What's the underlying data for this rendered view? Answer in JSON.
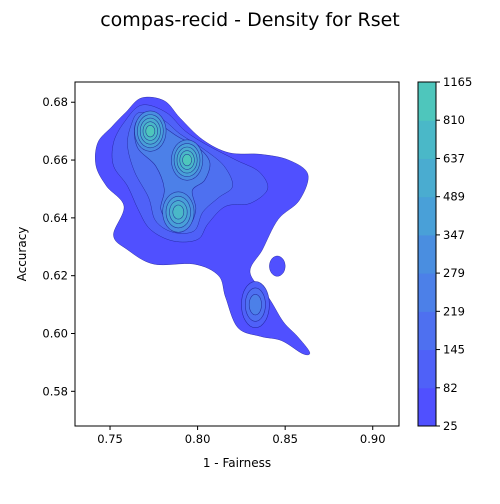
{
  "chart_data": {
    "type": "contour",
    "title": "compas-recid - Density for Rset",
    "xlabel": "1 - Fairness",
    "ylabel": "Accuracy",
    "xlim": [
      0.73,
      0.915
    ],
    "ylim": [
      0.568,
      0.687
    ],
    "xticks": [
      0.75,
      0.8,
      0.85,
      0.9
    ],
    "xtick_labels": [
      "0.75",
      "0.80",
      "0.85",
      "0.90"
    ],
    "yticks": [
      0.58,
      0.6,
      0.62,
      0.64,
      0.66,
      0.68
    ],
    "ytick_labels": [
      "0.58",
      "0.60",
      "0.62",
      "0.64",
      "0.66",
      "0.68"
    ],
    "grid": false,
    "colorbar": {
      "levels": [
        "25",
        "82",
        "145",
        "219",
        "279",
        "347",
        "489",
        "637",
        "810",
        "1165"
      ],
      "colors": [
        "#5050ff",
        "#4f61f8",
        "#4e70f0",
        "#4c80e8",
        "#4a8ee0",
        "#49a0d8",
        "#4aacd0",
        "#4ab8c8",
        "#4ec6bc",
        "#4ee6a8"
      ]
    },
    "density_peaks": [
      {
        "x": 0.773,
        "y": 0.67,
        "level": "810"
      },
      {
        "x": 0.794,
        "y": 0.66,
        "level": "810"
      },
      {
        "x": 0.789,
        "y": 0.642,
        "level": "637"
      },
      {
        "x": 0.833,
        "y": 0.61,
        "level": "219"
      }
    ],
    "region_color": "#5050ff",
    "contour_line_color": "#1a1a8c"
  }
}
